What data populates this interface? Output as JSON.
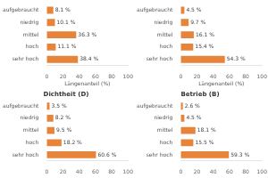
{
  "chart_data": [
    {
      "type": "bar",
      "orientation": "horizontal",
      "xlabel": "Längenanteil (%)",
      "categories": [
        "aufgebraucht",
        "niedrig",
        "mittel",
        "hoch",
        "sehr hoch"
      ],
      "values": [
        8.1,
        10.1,
        36.3,
        11.1,
        38.4
      ],
      "value_labels": [
        "8.1 %",
        "10.1 %",
        "36.3 %",
        "11.1 %",
        "38.4 %"
      ],
      "color": "#E8843A",
      "xlim": [
        0,
        100
      ],
      "xticks": [
        0,
        20,
        40,
        60,
        80,
        100
      ],
      "grid": false,
      "data_labels": true
    },
    {
      "type": "bar",
      "orientation": "horizontal",
      "xlabel": "Längenanteil (%)",
      "categories": [
        "aufgebraucht",
        "niedrig",
        "mittel",
        "hoch",
        "sehr hoch"
      ],
      "values": [
        4.5,
        9.7,
        16.1,
        15.4,
        54.3
      ],
      "value_labels": [
        "4.5 %",
        "9.7 %",
        "16.1 %",
        "15.4 %",
        "54.3 %"
      ],
      "color": "#E8843A",
      "xlim": [
        0,
        100
      ],
      "xticks": [
        0,
        20,
        40,
        60,
        80,
        100
      ],
      "grid": false,
      "data_labels": true
    },
    {
      "type": "bar",
      "orientation": "horizontal",
      "title": "Dichtheit (D)",
      "categories": [
        "aufgebraucht",
        "niedrig",
        "mittel",
        "hoch",
        "sehr hoch"
      ],
      "values": [
        3.5,
        8.2,
        9.5,
        18.2,
        60.6
      ],
      "value_labels": [
        "3.5 %",
        "8.2 %",
        "9.5 %",
        "18.2 %",
        "60.6 %"
      ],
      "color": "#E8843A",
      "xlim": [
        0,
        100
      ],
      "xticks": [
        0,
        20,
        40,
        60,
        80,
        100
      ],
      "grid": false,
      "data_labels": true
    },
    {
      "type": "bar",
      "orientation": "horizontal",
      "title": "Betrieb (B)",
      "categories": [
        "aufgebraucht",
        "niedrig",
        "mittel",
        "hoch",
        "sehr hoch"
      ],
      "values": [
        2.6,
        4.5,
        18.1,
        15.5,
        59.3
      ],
      "value_labels": [
        "2.6 %",
        "4.5 %",
        "18.1 %",
        "15.5 %",
        "59.3 %"
      ],
      "color": "#E8843A",
      "xlim": [
        0,
        100
      ],
      "xticks": [
        0,
        20,
        40,
        60,
        80,
        100
      ],
      "grid": false,
      "data_labels": true
    }
  ]
}
